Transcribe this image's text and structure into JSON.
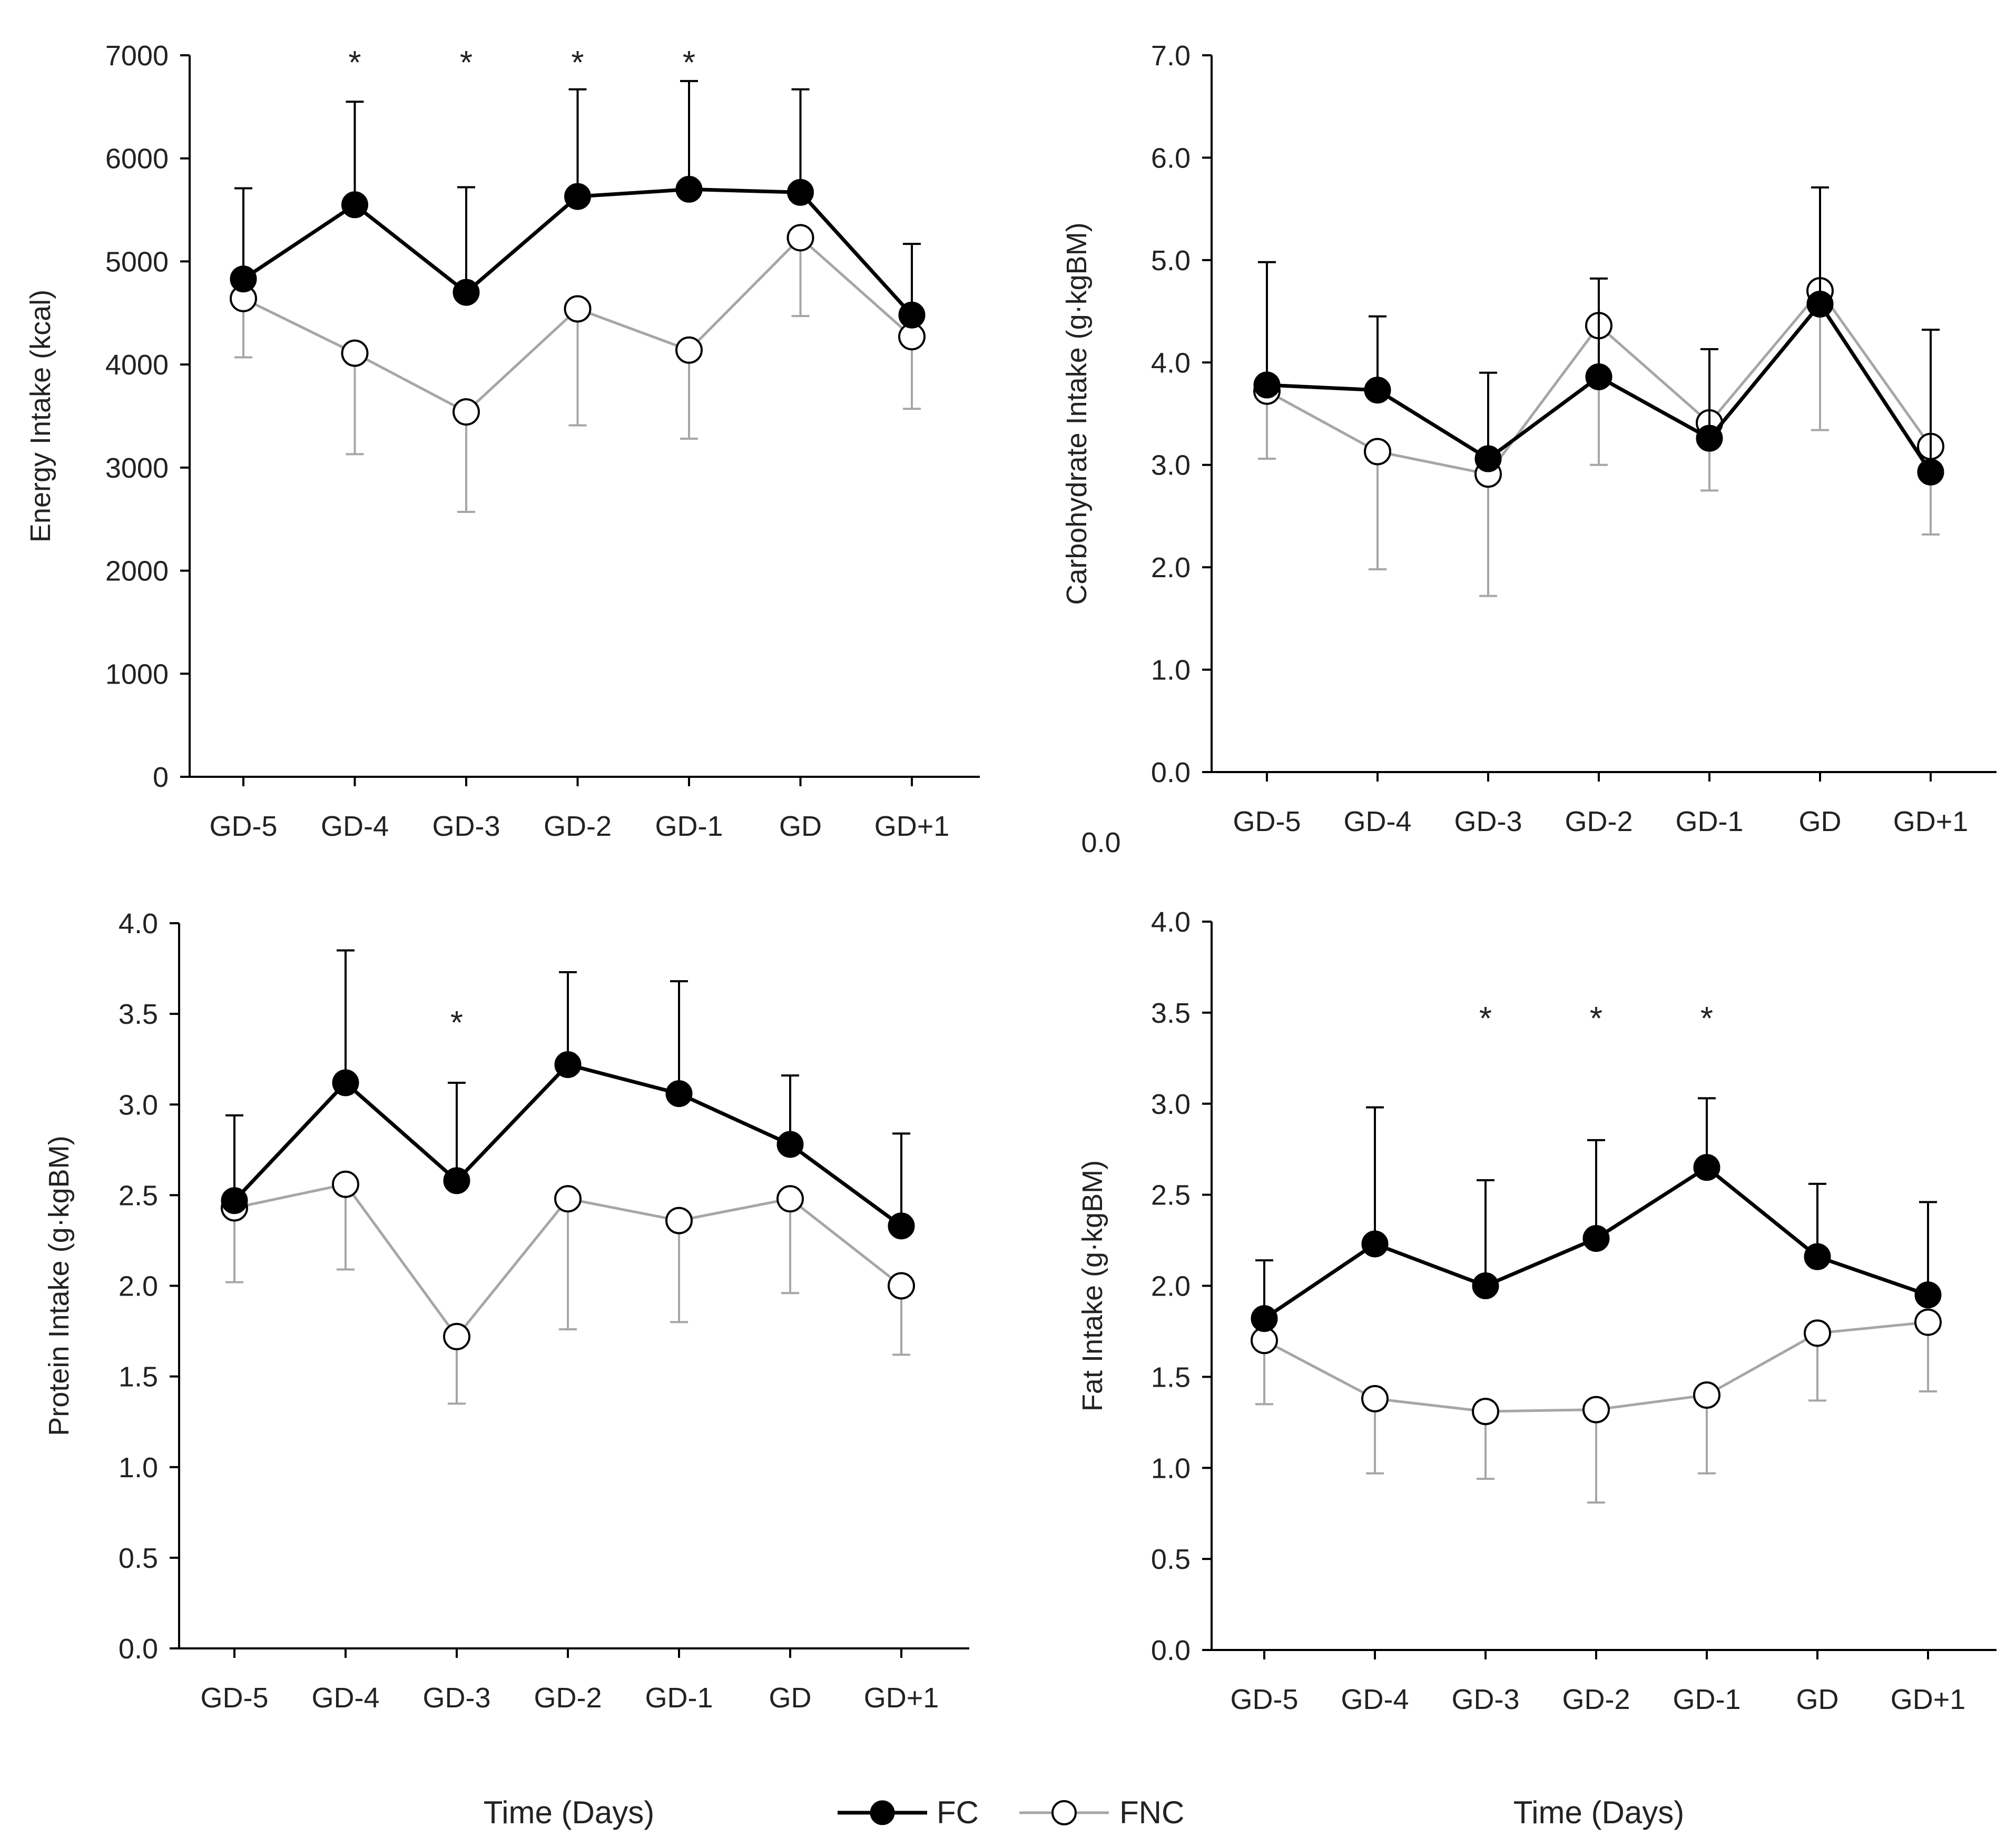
{
  "chart_data": [
    {
      "id": "energy",
      "type": "line",
      "ylabel": "Energy Intake (kcal)",
      "xlabel": "",
      "ylim": [
        0,
        7000
      ],
      "yticks": [
        0,
        1000,
        2000,
        3000,
        4000,
        5000,
        6000,
        7000
      ],
      "ytick_labels": [
        "0",
        "1000",
        "2000",
        "3000",
        "4000",
        "5000",
        "6000",
        "7000"
      ],
      "categories": [
        "GD-5",
        "GD-4",
        "GD-3",
        "GD-2",
        "GD-1",
        "GD",
        "GD+1"
      ],
      "series": [
        {
          "name": "FC",
          "values": [
            4830,
            5550,
            4700,
            5630,
            5700,
            5670,
            4480
          ],
          "error": [
            880,
            1000,
            1020,
            1040,
            1050,
            1000,
            690
          ],
          "error_dir": "up"
        },
        {
          "name": "FNC",
          "values": [
            4640,
            4110,
            3540,
            4540,
            4140,
            5230,
            4270
          ],
          "error": [
            570,
            980,
            970,
            1130,
            860,
            760,
            700
          ],
          "error_dir": "down"
        }
      ],
      "significance": [
        false,
        true,
        true,
        true,
        true,
        false,
        false
      ],
      "significance_mark": "*"
    },
    {
      "id": "carbohydrate",
      "type": "line",
      "ylabel": "Carbohydrate Intake (g·kgBM)",
      "xlabel": "",
      "ylim": [
        0,
        7
      ],
      "yticks": [
        0,
        1,
        2,
        3,
        4,
        5,
        6,
        7
      ],
      "ytick_labels": [
        "0.0",
        "1.0",
        "2.0",
        "3.0",
        "4.0",
        "5.0",
        "6.0",
        "7.0"
      ],
      "categories": [
        "GD-5",
        "GD-4",
        "GD-3",
        "GD-2",
        "GD-1",
        "GD",
        "GD+1"
      ],
      "series": [
        {
          "name": "FC",
          "values": [
            3.78,
            3.73,
            3.06,
            3.86,
            3.26,
            4.57,
            2.93
          ],
          "error": [
            1.2,
            0.72,
            0.84,
            0.96,
            0.87,
            1.14,
            1.39
          ],
          "error_dir": "up"
        },
        {
          "name": "FNC",
          "values": [
            3.72,
            3.13,
            2.91,
            4.36,
            3.41,
            4.7,
            3.18
          ],
          "error": [
            0.66,
            1.15,
            1.19,
            1.36,
            0.66,
            1.36,
            0.86
          ],
          "error_dir": "down"
        }
      ],
      "significance": [
        false,
        false,
        false,
        false,
        false,
        false,
        false
      ],
      "significance_mark": "*"
    },
    {
      "id": "protein",
      "type": "line",
      "ylabel": "Protein Intake (g·kgBM)",
      "xlabel": "Time (Days)",
      "ylim": [
        0,
        4
      ],
      "yticks": [
        0,
        0.5,
        1,
        1.5,
        2,
        2.5,
        3,
        3.5,
        4
      ],
      "ytick_labels": [
        "0.0",
        "0.5",
        "1.0",
        "1.5",
        "2.0",
        "2.5",
        "3.0",
        "3.5",
        "4.0"
      ],
      "categories": [
        "GD-5",
        "GD-4",
        "GD-3",
        "GD-2",
        "GD-1",
        "GD",
        "GD+1"
      ],
      "series": [
        {
          "name": "FC",
          "values": [
            2.47,
            3.12,
            2.58,
            3.22,
            3.06,
            2.78,
            2.33
          ],
          "error": [
            0.47,
            0.73,
            0.54,
            0.51,
            0.62,
            0.38,
            0.51
          ],
          "error_dir": "up"
        },
        {
          "name": "FNC",
          "values": [
            2.43,
            2.56,
            1.72,
            2.48,
            2.36,
            2.48,
            2.0
          ],
          "error": [
            0.41,
            0.47,
            0.37,
            0.72,
            0.56,
            0.52,
            0.38
          ],
          "error_dir": "down"
        }
      ],
      "significance": [
        false,
        false,
        true,
        false,
        false,
        false,
        false
      ],
      "significance_mark": "*"
    },
    {
      "id": "fat",
      "type": "line",
      "ylabel": "Fat Intake (g·kgBM)",
      "xlabel": "Time (Days)",
      "ylim": [
        0,
        4
      ],
      "yticks": [
        0,
        0.5,
        1,
        1.5,
        2,
        2.5,
        3,
        3.5,
        4
      ],
      "ytick_labels": [
        "0.0",
        "0.5",
        "1.0",
        "1.5",
        "2.0",
        "2.5",
        "3.0",
        "3.5",
        "4.0"
      ],
      "categories": [
        "GD-5",
        "GD-4",
        "GD-3",
        "GD-2",
        "GD-1",
        "GD",
        "GD+1"
      ],
      "series": [
        {
          "name": "FC",
          "values": [
            1.82,
            2.23,
            2.0,
            2.26,
            2.65,
            2.16,
            1.95
          ],
          "error": [
            0.32,
            0.75,
            0.58,
            0.54,
            0.38,
            0.4,
            0.51
          ],
          "error_dir": "up"
        },
        {
          "name": "FNC",
          "values": [
            1.7,
            1.38,
            1.31,
            1.32,
            1.4,
            1.74,
            1.8
          ],
          "error": [
            0.35,
            0.41,
            0.37,
            0.51,
            0.43,
            0.37,
            0.38
          ],
          "error_dir": "down"
        }
      ],
      "significance": [
        false,
        false,
        true,
        true,
        true,
        false,
        false
      ],
      "significance_mark": "*"
    }
  ],
  "legend": {
    "items": [
      {
        "name": "FC",
        "color": "#000000",
        "marker": "filled-circle"
      },
      {
        "name": "FNC",
        "color": "#a6a6a6",
        "marker": "open-circle"
      }
    ]
  },
  "stray_label": "0.0",
  "colors": {
    "fc": "#000000",
    "fnc": "#a6a6a6",
    "axis": "#000000",
    "text": "#222222"
  }
}
